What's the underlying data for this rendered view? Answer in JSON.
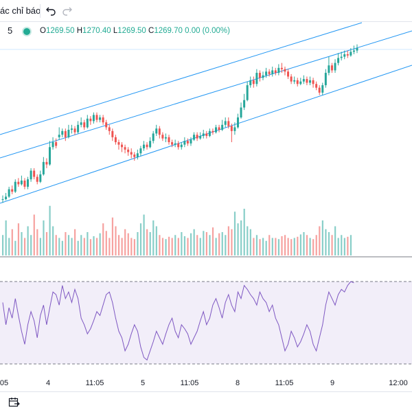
{
  "toolbar": {
    "indicators_label": "ác chỉ báo",
    "undo_icon": "undo-icon",
    "redo_icon": "redo-icon"
  },
  "legend": {
    "interval": "5",
    "status_color": "#22ab94",
    "open_label": "O",
    "open_value": "1269.50",
    "high_label": "H",
    "high_value": "1270.40",
    "low_label": "L",
    "low_value": "1269.50",
    "close_label": "C",
    "close_value": "1269.70",
    "change": "0.00 (0.00%)"
  },
  "time_axis": {
    "ticks": [
      "05",
      "4",
      "11:05",
      "5",
      "11:05",
      "8",
      "11:05",
      "9",
      "12:00"
    ]
  },
  "colors": {
    "up": "#26a69a",
    "down": "#ef5350",
    "channel": "#2196f3",
    "rsi_line": "#7e57c2",
    "rsi_fill": "#7e57c2"
  },
  "bottom_bar": {
    "calendar_icon": "goto-date-icon"
  },
  "chart_data": {
    "type": "candlestick",
    "candles": [
      [
        0,
        0,
        0.03,
        -0.03
      ],
      [
        0,
        0.02,
        0.05,
        -0.01
      ],
      [
        0.02,
        0.08,
        0.1,
        0.01
      ],
      [
        0.08,
        0.06,
        0.11,
        0.04
      ],
      [
        0.06,
        0.14,
        0.16,
        0.05
      ],
      [
        0.14,
        0.12,
        0.17,
        0.1
      ],
      [
        0.12,
        0.15,
        0.19,
        0.11
      ],
      [
        0.15,
        0.1,
        0.17,
        0.08
      ],
      [
        0.1,
        0.16,
        0.18,
        0.08
      ],
      [
        0.16,
        0.23,
        0.25,
        0.14
      ],
      [
        0.23,
        0.18,
        0.25,
        0.16
      ],
      [
        0.18,
        0.14,
        0.2,
        0.12
      ],
      [
        0.14,
        0.2,
        0.23,
        0.13
      ],
      [
        0.2,
        0.3,
        0.34,
        0.19
      ],
      [
        0.3,
        0.28,
        0.33,
        0.25
      ],
      [
        0.28,
        0.42,
        0.47,
        0.27
      ],
      [
        0.42,
        0.46,
        0.5,
        0.4
      ],
      [
        0.46,
        0.43,
        0.49,
        0.41
      ],
      [
        0.5,
        0.52,
        0.58,
        0.48
      ],
      [
        0.52,
        0.55,
        0.57,
        0.5
      ],
      [
        0.55,
        0.5,
        0.57,
        0.47
      ],
      [
        0.5,
        0.56,
        0.6,
        0.49
      ],
      [
        0.56,
        0.57,
        0.6,
        0.53
      ],
      [
        0.57,
        0.54,
        0.59,
        0.52
      ],
      [
        0.54,
        0.6,
        0.63,
        0.53
      ],
      [
        0.6,
        0.62,
        0.66,
        0.58
      ],
      [
        0.62,
        0.58,
        0.64,
        0.56
      ],
      [
        0.58,
        0.65,
        0.68,
        0.57
      ],
      [
        0.65,
        0.63,
        0.67,
        0.6
      ],
      [
        0.63,
        0.68,
        0.7,
        0.61
      ],
      [
        0.68,
        0.64,
        0.7,
        0.62
      ],
      [
        0.64,
        0.66,
        0.68,
        0.62
      ],
      [
        0.66,
        0.62,
        0.68,
        0.6
      ],
      [
        0.62,
        0.58,
        0.64,
        0.56
      ],
      [
        0.58,
        0.55,
        0.6,
        0.52
      ],
      [
        0.55,
        0.5,
        0.57,
        0.47
      ],
      [
        0.5,
        0.46,
        0.52,
        0.44
      ],
      [
        0.46,
        0.44,
        0.48,
        0.4
      ],
      [
        0.44,
        0.42,
        0.46,
        0.38
      ],
      [
        0.42,
        0.4,
        0.44,
        0.37
      ],
      [
        0.4,
        0.38,
        0.42,
        0.35
      ],
      [
        0.38,
        0.36,
        0.41,
        0.33
      ],
      [
        0.36,
        0.34,
        0.38,
        0.31
      ],
      [
        0.34,
        0.37,
        0.4,
        0.32
      ],
      [
        0.37,
        0.41,
        0.43,
        0.35
      ],
      [
        0.41,
        0.44,
        0.47,
        0.39
      ],
      [
        0.44,
        0.42,
        0.46,
        0.4
      ],
      [
        0.42,
        0.47,
        0.5,
        0.41
      ],
      [
        0.47,
        0.53,
        0.55,
        0.45
      ],
      [
        0.53,
        0.57,
        0.6,
        0.51
      ],
      [
        0.57,
        0.52,
        0.59,
        0.49
      ],
      [
        0.52,
        0.49,
        0.54,
        0.47
      ],
      [
        0.49,
        0.5,
        0.53,
        0.46
      ],
      [
        0.5,
        0.46,
        0.52,
        0.44
      ],
      [
        0.46,
        0.44,
        0.48,
        0.42
      ],
      [
        0.44,
        0.45,
        0.48,
        0.42
      ],
      [
        0.45,
        0.42,
        0.47,
        0.4
      ],
      [
        0.42,
        0.44,
        0.46,
        0.4
      ],
      [
        0.44,
        0.47,
        0.5,
        0.42
      ],
      [
        0.47,
        0.45,
        0.49,
        0.43
      ],
      [
        0.45,
        0.48,
        0.5,
        0.43
      ],
      [
        0.48,
        0.52,
        0.54,
        0.47
      ],
      [
        0.52,
        0.49,
        0.54,
        0.47
      ],
      [
        0.49,
        0.51,
        0.54,
        0.48
      ],
      [
        0.51,
        0.53,
        0.56,
        0.49
      ],
      [
        0.53,
        0.51,
        0.55,
        0.49
      ],
      [
        0.51,
        0.55,
        0.57,
        0.5
      ],
      [
        0.55,
        0.54,
        0.57,
        0.52
      ],
      [
        0.54,
        0.58,
        0.6,
        0.53
      ],
      [
        0.58,
        0.56,
        0.6,
        0.54
      ],
      [
        0.56,
        0.6,
        0.64,
        0.55
      ],
      [
        0.6,
        0.63,
        0.66,
        0.58
      ],
      [
        0.63,
        0.59,
        0.66,
        0.57
      ],
      [
        0.59,
        0.55,
        0.61,
        0.46
      ],
      [
        0.55,
        0.58,
        0.62,
        0.52
      ],
      [
        0.58,
        0.66,
        0.69,
        0.57
      ],
      [
        0.66,
        0.74,
        0.78,
        0.65
      ],
      [
        0.74,
        0.8,
        0.85,
        0.72
      ],
      [
        0.8,
        0.92,
        0.95,
        0.79
      ],
      [
        0.92,
        0.96,
        0.99,
        0.9
      ],
      [
        0.96,
        0.93,
        0.99,
        0.9
      ],
      [
        0.93,
        1.02,
        1.05,
        0.91
      ],
      [
        1.02,
        0.98,
        1.04,
        0.95
      ],
      [
        0.98,
        1.0,
        1.03,
        0.96
      ],
      [
        1.0,
        1.03,
        1.06,
        0.98
      ],
      [
        1.03,
        1.01,
        1.05,
        0.99
      ],
      [
        1.01,
        1.04,
        1.07,
        0.99
      ],
      [
        1.04,
        1.02,
        1.06,
        1.0
      ],
      [
        1.02,
        1.06,
        1.09,
        1.0
      ],
      [
        1.06,
        1.05,
        1.1,
        1.02
      ],
      [
        1.05,
        1.03,
        1.07,
        1.0
      ],
      [
        1.03,
        0.99,
        1.05,
        0.97
      ],
      [
        0.99,
        0.95,
        1.01,
        0.93
      ],
      [
        0.95,
        0.96,
        0.99,
        0.93
      ],
      [
        0.96,
        0.93,
        0.98,
        0.91
      ],
      [
        0.93,
        0.95,
        0.98,
        0.92
      ],
      [
        0.95,
        0.97,
        1.0,
        0.93
      ],
      [
        0.97,
        0.94,
        0.99,
        0.92
      ],
      [
        0.94,
        0.96,
        0.99,
        0.92
      ],
      [
        0.96,
        0.93,
        0.98,
        0.9
      ],
      [
        0.93,
        0.9,
        0.95,
        0.88
      ],
      [
        0.9,
        0.86,
        0.92,
        0.84
      ],
      [
        0.86,
        0.92,
        0.94,
        0.84
      ],
      [
        0.92,
        1.02,
        1.05,
        0.9
      ],
      [
        1.02,
        1.08,
        1.15,
        1.0
      ],
      [
        1.08,
        1.04,
        1.1,
        1.02
      ],
      [
        1.04,
        1.1,
        1.13,
        1.02
      ],
      [
        1.1,
        1.14,
        1.18,
        1.08
      ],
      [
        1.14,
        1.15,
        1.19,
        1.12
      ],
      [
        1.15,
        1.17,
        1.2,
        1.13
      ],
      [
        1.17,
        1.16,
        1.2,
        1.14
      ],
      [
        1.16,
        1.19,
        1.22,
        1.15
      ],
      [
        1.19,
        1.2,
        1.24,
        1.17
      ],
      [
        1.2,
        1.22,
        1.25,
        1.18
      ]
    ],
    "volume": [
      0.35,
      0.6,
      0.3,
      0.45,
      0.25,
      0.55,
      0.4,
      0.3,
      0.5,
      0.35,
      0.7,
      0.45,
      0.3,
      0.6,
      0.4,
      0.85,
      0.5,
      0.35,
      0.3,
      0.25,
      0.4,
      0.35,
      0.3,
      0.45,
      0.25,
      0.35,
      0.3,
      0.4,
      0.28,
      0.33,
      0.3,
      0.38,
      0.55,
      0.42,
      0.3,
      0.65,
      0.5,
      0.35,
      0.3,
      0.45,
      0.38,
      0.3,
      0.28,
      0.4,
      0.55,
      0.7,
      0.45,
      0.4,
      0.6,
      0.5,
      0.35,
      0.3,
      0.28,
      0.32,
      0.3,
      0.35,
      0.3,
      0.4,
      0.33,
      0.3,
      0.38,
      0.45,
      0.35,
      0.3,
      0.42,
      0.4,
      0.35,
      0.48,
      0.3,
      0.38,
      0.4,
      0.35,
      0.5,
      0.45,
      0.75,
      0.55,
      0.6,
      0.8,
      0.5,
      0.45,
      0.3,
      0.35,
      0.28,
      0.3,
      0.25,
      0.35,
      0.3,
      0.3,
      0.28,
      0.33,
      0.35,
      0.3,
      0.28,
      0.3,
      0.32,
      0.36,
      0.4,
      0.35,
      0.3,
      0.28,
      0.35,
      0.5,
      0.6,
      0.45,
      0.4,
      0.35,
      0.5,
      0.3,
      0.35,
      0.3,
      0.32,
      0.35
    ],
    "rsi": [
      72,
      55,
      68,
      60,
      75,
      62,
      50,
      40,
      55,
      65,
      58,
      45,
      62,
      70,
      55,
      68,
      80,
      78,
      70,
      85,
      75,
      80,
      72,
      82,
      75,
      60,
      55,
      48,
      52,
      58,
      65,
      62,
      70,
      78,
      80,
      72,
      60,
      50,
      45,
      35,
      40,
      48,
      55,
      50,
      38,
      30,
      28,
      35,
      42,
      50,
      45,
      40,
      48,
      55,
      60,
      50,
      45,
      55,
      52,
      48,
      40,
      45,
      50,
      58,
      65,
      55,
      60,
      70,
      75,
      68,
      60,
      72,
      78,
      70,
      65,
      80,
      75,
      85,
      82,
      78,
      75,
      70,
      80,
      75,
      72,
      65,
      70,
      60,
      55,
      45,
      35,
      40,
      50,
      45,
      38,
      42,
      48,
      55,
      50,
      40,
      35,
      45,
      55,
      70,
      80,
      75,
      70,
      78,
      82,
      80,
      85,
      88,
      87
    ]
  }
}
